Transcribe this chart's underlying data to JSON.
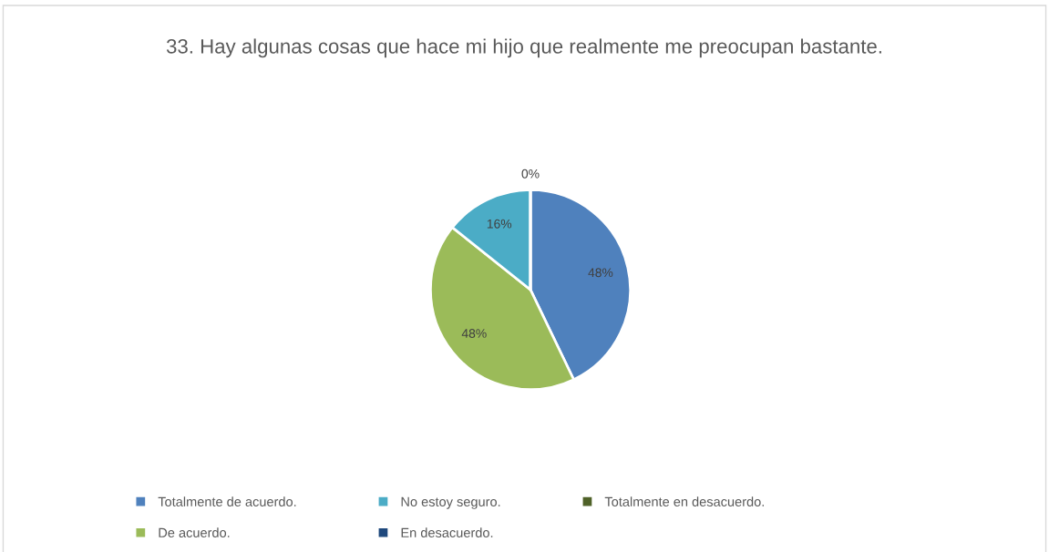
{
  "chart_data": {
    "type": "pie",
    "title": "33. Hay algunas cosas que hace mi hijo que realmente me preocupan bastante.",
    "categories": [
      "Totalmente de acuerdo.",
      "De acuerdo.",
      "No estoy seguro.",
      "En desacuerdo.",
      "Totalmente en desacuerdo."
    ],
    "values": [
      48,
      48,
      16,
      0,
      0
    ],
    "value_labels": [
      "48%",
      "48%",
      "16%",
      "0%",
      null
    ],
    "colors": [
      "#4f81bd",
      "#9bbb59",
      "#4bacc6",
      "#1f497d",
      "#4f6228"
    ],
    "legend": "bottom"
  }
}
